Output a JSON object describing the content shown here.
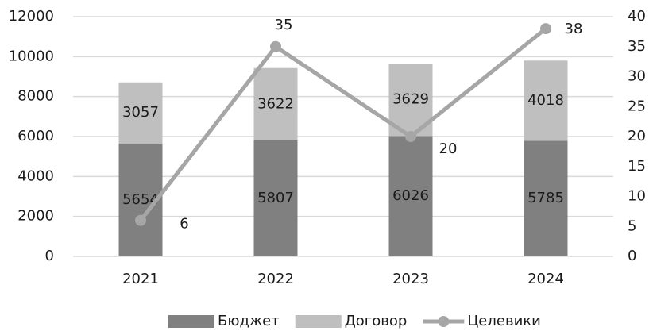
{
  "chart_data": {
    "type": "bar-line",
    "categories": [
      "2021",
      "2022",
      "2023",
      "2024"
    ],
    "series": [
      {
        "name": "Бюджет",
        "color": "#808080",
        "type": "bar",
        "values": [
          5654,
          5807,
          6026,
          5785
        ]
      },
      {
        "name": "Договор",
        "color": "#bfbfbf",
        "type": "bar",
        "values": [
          3057,
          3622,
          3629,
          4018
        ]
      },
      {
        "name": "Целевики",
        "color": "#a6a6a6",
        "type": "line",
        "axis": "y2",
        "values": [
          6,
          35,
          20,
          38
        ]
      }
    ],
    "stacked": true,
    "ylim": [
      0,
      12000
    ],
    "yticks": [
      0,
      2000,
      4000,
      6000,
      8000,
      10000,
      12000
    ],
    "y2lim": [
      0,
      40
    ],
    "y2ticks": [
      0,
      5,
      10,
      15,
      20,
      25,
      30,
      35,
      40
    ],
    "grid": true,
    "legend": "bottom"
  }
}
